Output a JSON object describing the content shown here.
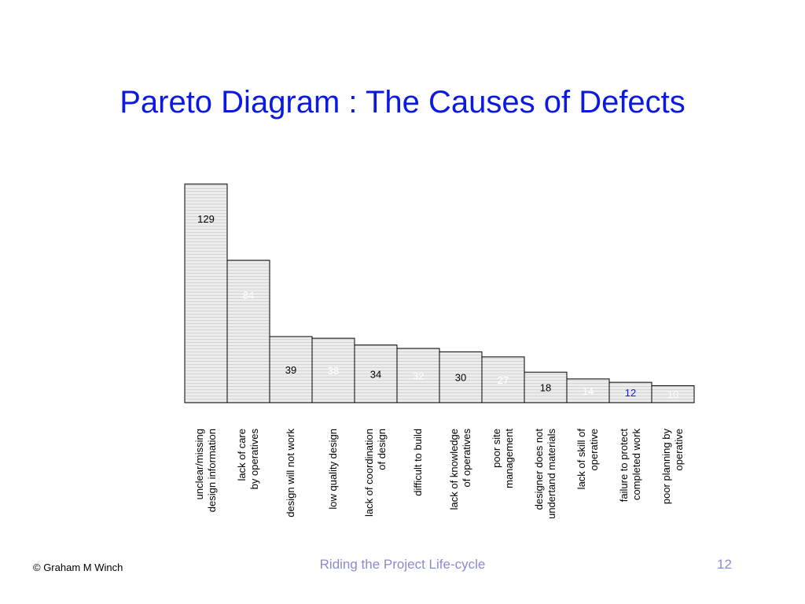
{
  "slide": {
    "title": "Pareto Diagram : The Causes of Defects",
    "footer_left": "© Graham M Winch",
    "footer_center": "Riding the Project Life-cycle",
    "page_number": "12"
  },
  "chart_data": {
    "type": "bar",
    "title": "",
    "xlabel": "",
    "ylabel": "",
    "ylim": [
      0,
      129
    ],
    "grid": false,
    "categories": [
      [
        "unclear/missing",
        "design information"
      ],
      [
        "lack of care",
        "by operatives"
      ],
      [
        "design will not work"
      ],
      [
        "low quality design"
      ],
      [
        "lack of coordination",
        "of design"
      ],
      [
        "difficult to build"
      ],
      [
        "lack of knowledge",
        "of operatives"
      ],
      [
        "poor site",
        "management"
      ],
      [
        "designer does not",
        "undertand materials"
      ],
      [
        "lack of skill of",
        "operative"
      ],
      [
        "failure to protect",
        "completed work"
      ],
      [
        "poor planning by",
        "operative"
      ]
    ],
    "values": [
      129,
      84,
      39,
      38,
      34,
      32,
      30,
      27,
      18,
      14,
      12,
      10
    ],
    "value_label_colors": [
      "#000000",
      "#ffffff",
      "#000000",
      "#ffffff",
      "#000000",
      "#ffffff",
      "#000000",
      "#ffffff",
      "#000000",
      "#ffffff",
      "#0a1ae0",
      "#ffffff"
    ],
    "bar_fill": "#ebebeb",
    "bar_stroke": "#000000"
  }
}
